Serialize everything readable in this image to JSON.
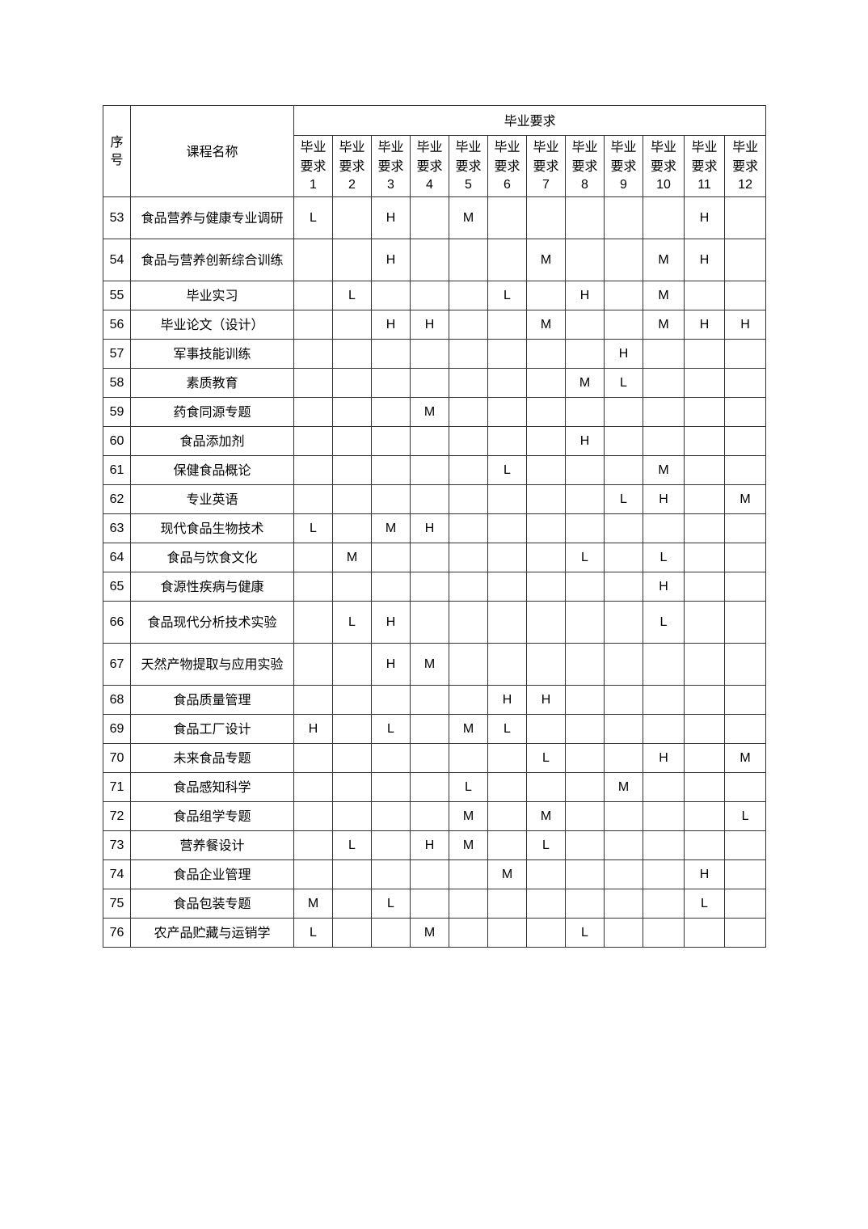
{
  "table": {
    "header": {
      "seq": "序号",
      "course_name": "课程名称",
      "group": "毕业要求",
      "requirement_prefix": "毕业要求",
      "requirements": [
        "1",
        "2",
        "3",
        "4",
        "5",
        "6",
        "7",
        "8",
        "9",
        "10",
        "11",
        "12"
      ]
    },
    "rows": [
      {
        "no": "53",
        "name": "食品营养与健康专业调研",
        "cells": [
          "L",
          "",
          "H",
          "",
          "M",
          "",
          "",
          "",
          "",
          "",
          "H",
          ""
        ]
      },
      {
        "no": "54",
        "name": "食品与营养创新综合训练",
        "cells": [
          "",
          "",
          "H",
          "",
          "",
          "",
          "M",
          "",
          "",
          "M",
          "H",
          ""
        ]
      },
      {
        "no": "55",
        "name": "毕业实习",
        "cells": [
          "",
          "L",
          "",
          "",
          "",
          "L",
          "",
          "H",
          "",
          "M",
          "",
          ""
        ]
      },
      {
        "no": "56",
        "name": "毕业论文（设计）",
        "cells": [
          "",
          "",
          "H",
          "H",
          "",
          "",
          "M",
          "",
          "",
          "M",
          "H",
          "H"
        ]
      },
      {
        "no": "57",
        "name": "军事技能训练",
        "cells": [
          "",
          "",
          "",
          "",
          "",
          "",
          "",
          "",
          "H",
          "",
          "",
          ""
        ]
      },
      {
        "no": "58",
        "name": "素质教育",
        "cells": [
          "",
          "",
          "",
          "",
          "",
          "",
          "",
          "M",
          "L",
          "",
          "",
          ""
        ]
      },
      {
        "no": "59",
        "name": "药食同源专题",
        "cells": [
          "",
          "",
          "",
          "M",
          "",
          "",
          "",
          "",
          "",
          "",
          "",
          ""
        ]
      },
      {
        "no": "60",
        "name": "食品添加剂",
        "cells": [
          "",
          "",
          "",
          "",
          "",
          "",
          "",
          "H",
          "",
          "",
          "",
          ""
        ]
      },
      {
        "no": "61",
        "name": "保健食品概论",
        "cells": [
          "",
          "",
          "",
          "",
          "",
          "L",
          "",
          "",
          "",
          "M",
          "",
          ""
        ]
      },
      {
        "no": "62",
        "name": "专业英语",
        "cells": [
          "",
          "",
          "",
          "",
          "",
          "",
          "",
          "",
          "L",
          "H",
          "",
          "M"
        ]
      },
      {
        "no": "63",
        "name": "现代食品生物技术",
        "cells": [
          "L",
          "",
          "M",
          "H",
          "",
          "",
          "",
          "",
          "",
          "",
          "",
          ""
        ]
      },
      {
        "no": "64",
        "name": "食品与饮食文化",
        "cells": [
          "",
          "M",
          "",
          "",
          "",
          "",
          "",
          "L",
          "",
          "L",
          "",
          ""
        ]
      },
      {
        "no": "65",
        "name": "食源性疾病与健康",
        "cells": [
          "",
          "",
          "",
          "",
          "",
          "",
          "",
          "",
          "",
          "H",
          "",
          ""
        ]
      },
      {
        "no": "66",
        "name": "食品现代分析技术实验",
        "cells": [
          "",
          "L",
          "H",
          "",
          "",
          "",
          "",
          "",
          "",
          "L",
          "",
          ""
        ]
      },
      {
        "no": "67",
        "name": "天然产物提取与应用实验",
        "cells": [
          "",
          "",
          "H",
          "M",
          "",
          "",
          "",
          "",
          "",
          "",
          "",
          ""
        ]
      },
      {
        "no": "68",
        "name": "食品质量管理",
        "cells": [
          "",
          "",
          "",
          "",
          "",
          "H",
          "H",
          "",
          "",
          "",
          "",
          ""
        ]
      },
      {
        "no": "69",
        "name": "食品工厂设计",
        "cells": [
          "H",
          "",
          "L",
          "",
          "M",
          "L",
          "",
          "",
          "",
          "",
          "",
          ""
        ]
      },
      {
        "no": "70",
        "name": "未来食品专题",
        "cells": [
          "",
          "",
          "",
          "",
          "",
          "",
          "L",
          "",
          "",
          "H",
          "",
          "M"
        ]
      },
      {
        "no": "71",
        "name": "食品感知科学",
        "cells": [
          "",
          "",
          "",
          "",
          "L",
          "",
          "",
          "",
          "M",
          "",
          "",
          ""
        ]
      },
      {
        "no": "72",
        "name": "食品组学专题",
        "cells": [
          "",
          "",
          "",
          "",
          "M",
          "",
          "M",
          "",
          "",
          "",
          "",
          "L"
        ]
      },
      {
        "no": "73",
        "name": "营养餐设计",
        "cells": [
          "",
          "L",
          "",
          "H",
          "M",
          "",
          "L",
          "",
          "",
          "",
          "",
          ""
        ]
      },
      {
        "no": "74",
        "name": "食品企业管理",
        "cells": [
          "",
          "",
          "",
          "",
          "",
          "M",
          "",
          "",
          "",
          "",
          "H",
          ""
        ]
      },
      {
        "no": "75",
        "name": "食品包装专题",
        "cells": [
          "M",
          "",
          "L",
          "",
          "",
          "",
          "",
          "",
          "",
          "",
          "L",
          ""
        ]
      },
      {
        "no": "76",
        "name": "农产品贮藏与运销学",
        "cells": [
          "L",
          "",
          "",
          "M",
          "",
          "",
          "",
          "L",
          "",
          "",
          "",
          ""
        ]
      }
    ]
  }
}
